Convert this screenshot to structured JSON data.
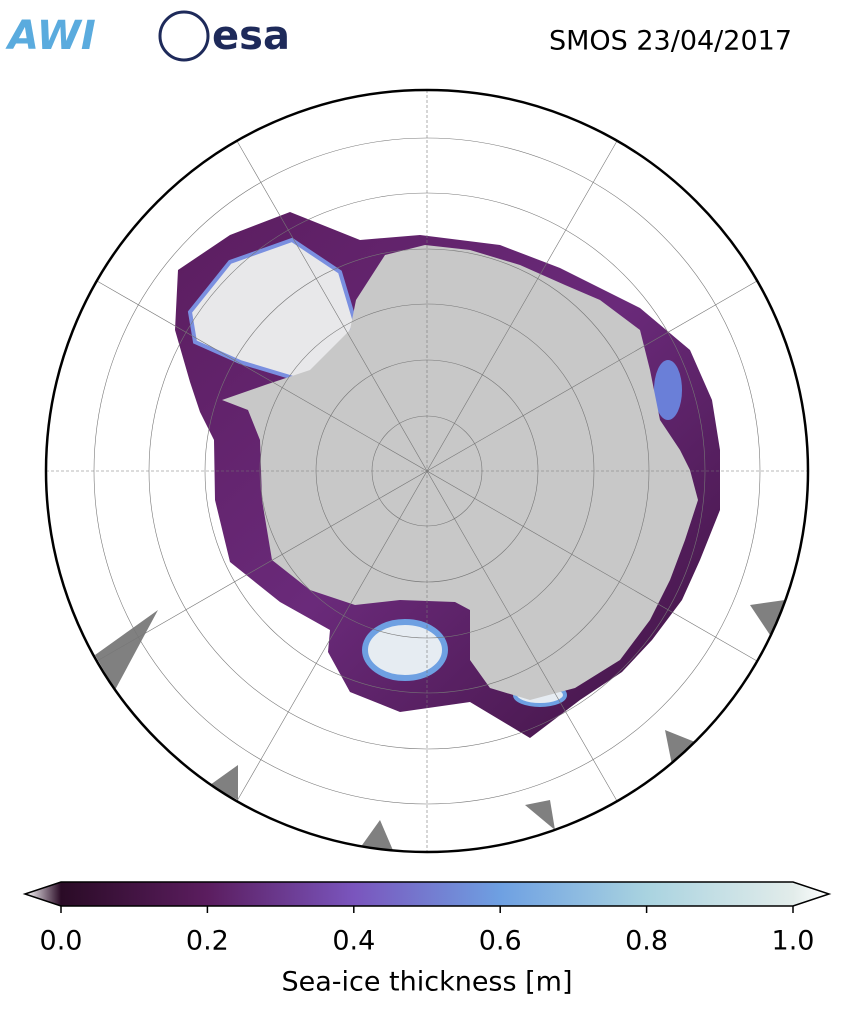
{
  "header": {
    "logos": [
      "AWI",
      "esa"
    ],
    "title": "SMOS 23/04/2017"
  },
  "colorbar": {
    "label": "Sea-ice thickness [m]",
    "lim": [
      0,
      1
    ],
    "ticks": [
      {
        "value": 0,
        "label": "0.0"
      },
      {
        "value": 0.2,
        "label": "0.2"
      },
      {
        "value": 0.4,
        "label": "0.4"
      },
      {
        "value": 0.6,
        "label": "0.6"
      },
      {
        "value": 0.8,
        "label": "0.8"
      },
      {
        "value": 1,
        "label": "1.0"
      }
    ],
    "colors": [
      "#2a0b26",
      "#5b1d5f",
      "#7a55bd",
      "#6ea0e2",
      "#a9d3e0",
      "#e2ecea"
    ]
  }
}
